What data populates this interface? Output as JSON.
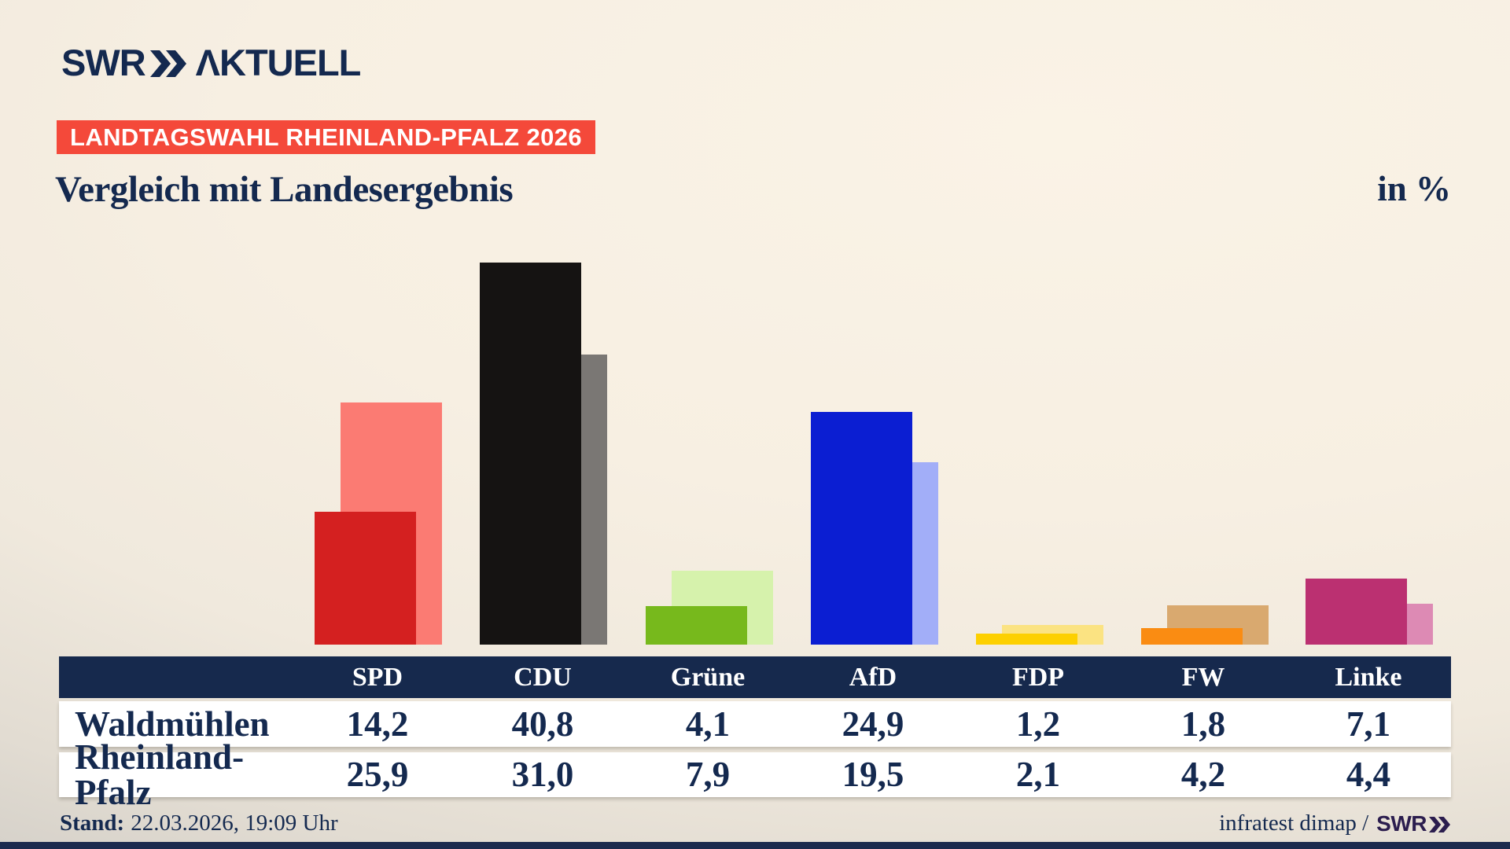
{
  "header": {
    "brand_swr": "SWR",
    "brand_aktuell": "ΛKTUELL",
    "badge": "LANDTAGSWAHL RHEINLAND-PFALZ 2026",
    "title": "Vergleich mit Landesergebnis",
    "unit_label": "in %"
  },
  "chart_data": {
    "type": "bar",
    "title": "Vergleich mit Landesergebnis",
    "unit": "in %",
    "categories": [
      "SPD",
      "CDU",
      "Grüne",
      "AfD",
      "FDP",
      "FW",
      "Linke"
    ],
    "series": [
      {
        "name": "Waldmühlen",
        "values": [
          14.2,
          40.8,
          4.1,
          24.9,
          1.2,
          1.8,
          7.1
        ]
      },
      {
        "name": "Rheinland-Pfalz",
        "values": [
          25.9,
          31.0,
          7.9,
          19.5,
          2.1,
          4.2,
          4.4
        ]
      }
    ],
    "colors": {
      "front": [
        "#d42020",
        "#151312",
        "#77b91c",
        "#0b1ed2",
        "#fdd000",
        "#fa8c12",
        "#bb3071"
      ],
      "back": [
        "#fb7b73",
        "#7a7774",
        "#d6f2ac",
        "#a2aef8",
        "#fbe382",
        "#d9a96f",
        "#dd8ab4"
      ]
    },
    "ylim": [
      0,
      42
    ],
    "grid": false,
    "legend": "series names shown as table row labels"
  },
  "table": {
    "columns": [
      "SPD",
      "CDU",
      "Grüne",
      "AfD",
      "FDP",
      "FW",
      "Linke"
    ],
    "rows": [
      {
        "label": "Waldmühlen",
        "values": [
          "14,2",
          "40,8",
          "4,1",
          "24,9",
          "1,2",
          "1,8",
          "7,1"
        ]
      },
      {
        "label": "Rheinland-Pfalz",
        "values": [
          "25,9",
          "31,0",
          "7,9",
          "19,5",
          "2,1",
          "4,2",
          "4,4"
        ]
      }
    ]
  },
  "footer": {
    "stand_label": "Stand:",
    "stand_value": "22.03.2026, 19:09 Uhr",
    "source": "infratest dimap /",
    "source_brand": "SWR"
  },
  "colors": {
    "navy": "#16294d",
    "badge_red": "#f4493a",
    "background_beige": "#f7efe2",
    "bottom_bar": "#1b2a4e",
    "brand_purple": "#2b1d4e",
    "row_white": "#ffffff"
  }
}
